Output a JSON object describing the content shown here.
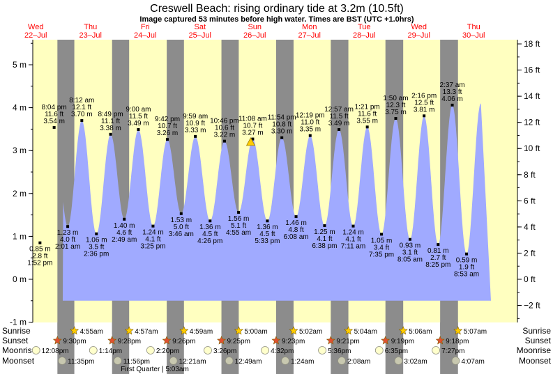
{
  "chart_data": {
    "type": "area",
    "title": "Creswell Beach: rising  ordinary tide at 3.2m (10.5ft)",
    "subtitle": "Image captured 53 minutes before high water. Times are BST (UTC +1.0hrs)",
    "ylabel_left_unit": "m",
    "ylabel_right_unit": "ft",
    "ylim_m": [
      -1,
      5.5
    ],
    "y_ticks_m": [
      "-1 m",
      "0 m",
      "1 m",
      "2 m",
      "3 m",
      "4 m",
      "5 m"
    ],
    "y_ticks_ft": [
      "−2 ft",
      "0 ft",
      "2 ft",
      "4 ft",
      "6 ft",
      "8 ft",
      "10 ft",
      "12 ft",
      "14 ft",
      "16 ft",
      "18 ft"
    ],
    "days": [
      {
        "dow": "Wed",
        "date": "22–Jul"
      },
      {
        "dow": "Thu",
        "date": "23–Jul"
      },
      {
        "dow": "Fri",
        "date": "24–Jul"
      },
      {
        "dow": "Sat",
        "date": "25–Jul"
      },
      {
        "dow": "Sun",
        "date": "26–Jul"
      },
      {
        "dow": "Mon",
        "date": "27–Jul"
      },
      {
        "dow": "Tue",
        "date": "28–Jul"
      },
      {
        "dow": "Wed",
        "date": "29–Jul"
      },
      {
        "dow": "Thu",
        "date": "30–Jul"
      }
    ],
    "tides": [
      {
        "day": 0,
        "time": "1:52 pm",
        "type": "low",
        "m": 0.85,
        "m_label": "0.85 m",
        "ft_label": "2.8 ft"
      },
      {
        "day": 0,
        "time": "8:04 pm",
        "type": "high",
        "m": 3.54,
        "m_label": "3.54",
        "ft_label": "11.6 ft"
      },
      {
        "day": 1,
        "time": "2:01 am",
        "type": "low",
        "m": 1.23,
        "m_label": "1.23 m",
        "ft_label": "4.0 ft"
      },
      {
        "day": 1,
        "time": "8:12 am",
        "type": "high",
        "m": 3.7,
        "m_label": "3.70",
        "ft_label": "12.1 ft"
      },
      {
        "day": 1,
        "time": "2:36 pm",
        "type": "low",
        "m": 1.06,
        "m_label": "1.06 m",
        "ft_label": "3.5 ft"
      },
      {
        "day": 1,
        "time": "8:49 pm",
        "type": "high",
        "m": 3.38,
        "m_label": "3.38",
        "ft_label": "11.1 ft"
      },
      {
        "day": 2,
        "time": "2:49 am",
        "type": "low",
        "m": 1.4,
        "m_label": "1.40 m",
        "ft_label": "4.6 ft"
      },
      {
        "day": 2,
        "time": "9:00 am",
        "type": "high",
        "m": 3.49,
        "m_label": "3.49",
        "ft_label": "11.5 ft"
      },
      {
        "day": 2,
        "time": "3:25 pm",
        "type": "low",
        "m": 1.24,
        "m_label": "1.24 m",
        "ft_label": "4.1 ft"
      },
      {
        "day": 2,
        "time": "9:42 pm",
        "type": "high",
        "m": 3.26,
        "m_label": "3.26",
        "ft_label": "10.7 ft"
      },
      {
        "day": 3,
        "time": "3:46 am",
        "type": "low",
        "m": 1.53,
        "m_label": "1.53 m",
        "ft_label": "5.0 ft"
      },
      {
        "day": 3,
        "time": "9:59 am",
        "type": "high",
        "m": 3.33,
        "m_label": "3.33",
        "ft_label": "10.9 ft"
      },
      {
        "day": 3,
        "time": "4:26 pm",
        "type": "low",
        "m": 1.36,
        "m_label": "1.36 m",
        "ft_label": "4.5 ft"
      },
      {
        "day": 3,
        "time": "10:46 pm",
        "type": "high",
        "m": 3.22,
        "m_label": "3.22",
        "ft_label": "10.6 ft"
      },
      {
        "day": 4,
        "time": "4:55 am",
        "type": "low",
        "m": 1.56,
        "m_label": "1.56 m",
        "ft_label": "5.1 ft"
      },
      {
        "day": 4,
        "time": "11:08 am",
        "type": "high",
        "m": 3.27,
        "m_label": "3.27",
        "ft_label": "10.7 ft"
      },
      {
        "day": 4,
        "time": "5:33 pm",
        "type": "low",
        "m": 1.36,
        "m_label": "1.36 m",
        "ft_label": "4.5 ft"
      },
      {
        "day": 4,
        "time": "11:54 pm",
        "type": "high",
        "m": 3.3,
        "m_label": "3.30",
        "ft_label": "10.8 ft"
      },
      {
        "day": 5,
        "time": "6:08 am",
        "type": "low",
        "m": 1.46,
        "m_label": "1.46 m",
        "ft_label": "4.8 ft"
      },
      {
        "day": 5,
        "time": "12:19 pm",
        "type": "high",
        "m": 3.35,
        "m_label": "3.35",
        "ft_label": "11.0 ft"
      },
      {
        "day": 5,
        "time": "6:38 pm",
        "type": "low",
        "m": 1.25,
        "m_label": "1.25 m",
        "ft_label": "4.1 ft"
      },
      {
        "day": 6,
        "time": "12:57 am",
        "type": "high",
        "m": 3.49,
        "m_label": "3.49",
        "ft_label": "11.5 ft"
      },
      {
        "day": 6,
        "time": "7:11 am",
        "type": "low",
        "m": 1.24,
        "m_label": "1.24 m",
        "ft_label": "4.1 ft"
      },
      {
        "day": 6,
        "time": "1:21 pm",
        "type": "high",
        "m": 3.55,
        "m_label": "3.55",
        "ft_label": "11.6 ft"
      },
      {
        "day": 6,
        "time": "7:35 pm",
        "type": "low",
        "m": 1.05,
        "m_label": "1.05 m",
        "ft_label": "3.4 ft"
      },
      {
        "day": 7,
        "time": "1:50 am",
        "type": "high",
        "m": 3.75,
        "m_label": "3.75",
        "ft_label": "12.3 ft"
      },
      {
        "day": 7,
        "time": "8:05 am",
        "type": "low",
        "m": 0.93,
        "m_label": "0.93 m",
        "ft_label": "3.1 ft"
      },
      {
        "day": 7,
        "time": "2:16 pm",
        "type": "high",
        "m": 3.81,
        "m_label": "3.81",
        "ft_label": "12.5 ft"
      },
      {
        "day": 7,
        "time": "8:25 pm",
        "type": "low",
        "m": 0.81,
        "m_label": "0.81 m",
        "ft_label": "2.7 ft"
      },
      {
        "day": 8,
        "time": "2:37 am",
        "type": "high",
        "m": 4.06,
        "m_label": "4.06",
        "ft_label": "13.3 ft"
      },
      {
        "day": 8,
        "time": "8:53 am",
        "type": "low",
        "m": 0.59,
        "m_label": "0.59 m",
        "ft_label": "1.9 ft"
      }
    ],
    "current": {
      "day": 4,
      "time": "10:15 am",
      "m": 3.2
    },
    "sunrise": [
      {
        "day": 1,
        "time": "4:55am"
      },
      {
        "day": 2,
        "time": "4:57am"
      },
      {
        "day": 3,
        "time": "4:59am"
      },
      {
        "day": 4,
        "time": "5:00am"
      },
      {
        "day": 5,
        "time": "5:02am"
      },
      {
        "day": 6,
        "time": "5:04am"
      },
      {
        "day": 7,
        "time": "5:06am"
      },
      {
        "day": 8,
        "time": "5:07am"
      }
    ],
    "sunset": [
      {
        "day": 0,
        "time": "9:30pm"
      },
      {
        "day": 1,
        "time": "9:28pm"
      },
      {
        "day": 2,
        "time": "9:26pm"
      },
      {
        "day": 3,
        "time": "9:25pm"
      },
      {
        "day": 4,
        "time": "9:23pm"
      },
      {
        "day": 5,
        "time": "9:21pm"
      },
      {
        "day": 6,
        "time": "9:19pm"
      },
      {
        "day": 7,
        "time": "9:18pm"
      }
    ],
    "moonrise": [
      {
        "day": 0,
        "time": "12:08pm"
      },
      {
        "day": 1,
        "time": "1:14pm"
      },
      {
        "day": 2,
        "time": "2:20pm"
      },
      {
        "day": 3,
        "time": "3:26pm"
      },
      {
        "day": 4,
        "time": "4:32pm"
      },
      {
        "day": 5,
        "time": "5:36pm"
      },
      {
        "day": 6,
        "time": "6:35pm"
      },
      {
        "day": 7,
        "time": "7:27pm"
      }
    ],
    "moonset": [
      {
        "day": 0,
        "time": "11:35pm"
      },
      {
        "day": 1,
        "time": "11:56pm"
      },
      {
        "day": 3,
        "time": "12:21am"
      },
      {
        "day": 4,
        "time": "12:49am"
      },
      {
        "day": 5,
        "time": "1:24am"
      },
      {
        "day": 6,
        "time": "2:08am"
      },
      {
        "day": 7,
        "time": "3:02am"
      },
      {
        "day": 8,
        "time": "4:07am"
      }
    ],
    "moon_phase_label": "First Quarter | 5:03am",
    "row_labels": {
      "sunrise": "Sunrise",
      "sunset": "Sunset",
      "moonrise": "Moonrise",
      "moonset": "Moonset"
    },
    "colors": {
      "day_bg": "#ffffc0",
      "night_bg": "#8c8c8c",
      "water": "#a0aaff",
      "day_header": "#ff0000",
      "sun_star": "#ffcc00",
      "sunset_star": "#e05030",
      "moonrise": "#ffffcc",
      "moonset": "#c8c8b0"
    }
  }
}
